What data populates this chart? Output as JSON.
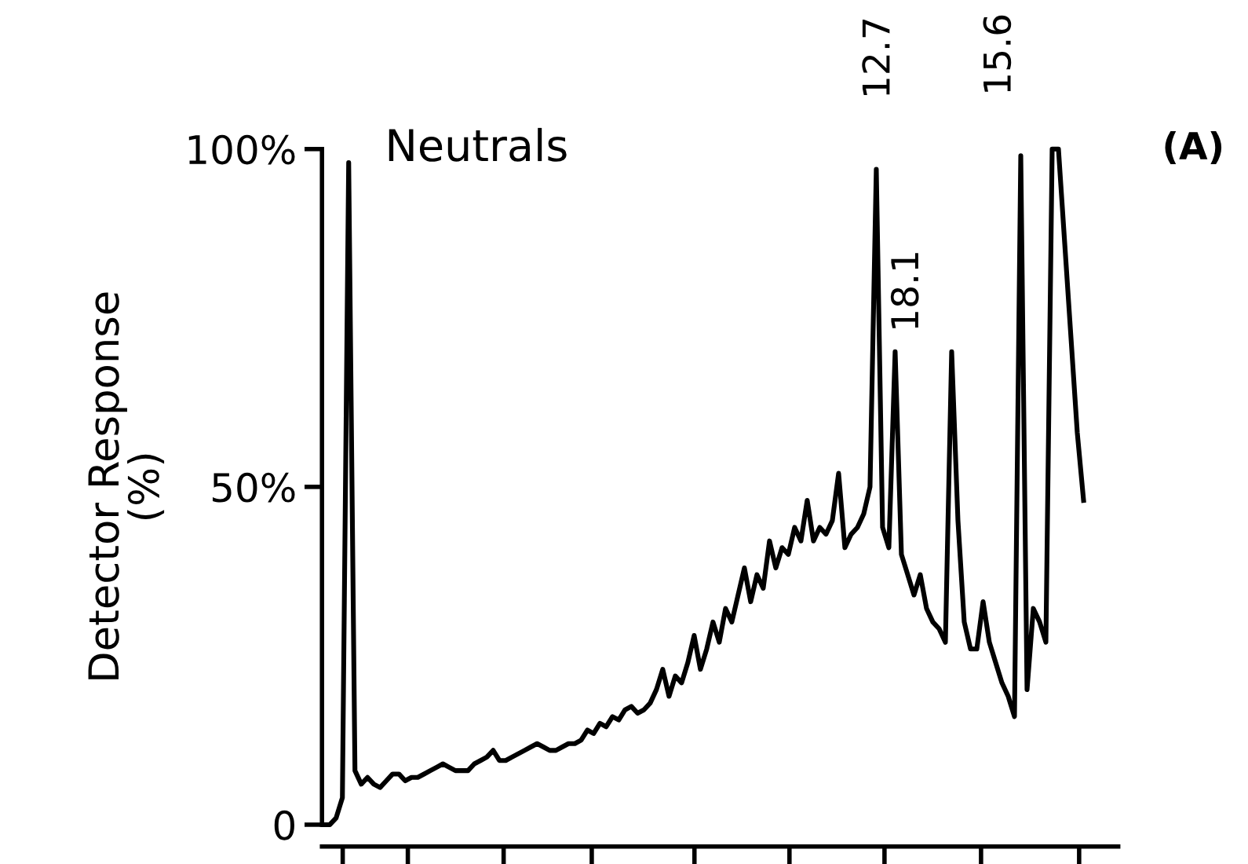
{
  "chart_data": {
    "type": "line",
    "ylabel": "Detector Response\n(%)",
    "annotations": [
      "Neutrals",
      "(A)",
      "12.7",
      "18.1",
      "15.6"
    ],
    "categories": [
      null,
      null,
      null,
      null,
      null,
      null,
      null,
      null,
      null,
      null,
      null,
      null,
      null,
      null,
      null,
      null,
      null,
      null,
      null,
      null,
      null,
      null,
      null,
      null,
      null,
      null,
      null,
      null,
      null,
      null,
      null,
      null,
      null,
      null,
      null,
      null,
      null,
      null,
      null,
      null,
      null,
      null,
      null,
      null,
      null,
      null,
      null,
      null,
      null,
      null,
      null,
      null,
      null,
      null,
      null,
      null,
      null,
      null,
      null,
      null,
      null,
      null,
      null,
      null,
      null,
      null,
      null,
      null,
      null,
      null,
      null,
      null,
      null,
      null,
      null,
      null,
      null,
      null,
      null,
      null,
      null,
      null,
      null,
      null,
      null,
      null,
      null,
      null,
      null,
      null,
      null,
      null,
      null,
      null,
      null,
      null,
      null,
      null,
      null,
      null,
      null,
      null,
      null,
      null,
      null,
      null,
      null,
      null,
      null,
      null,
      null,
      null,
      null,
      null,
      null,
      null,
      null,
      null,
      null,
      null,
      null,
      null
    ],
    "series": [
      {
        "color": "#000000",
        "values": [
          0,
          0,
          1,
          4,
          98,
          8,
          6,
          7,
          6,
          5.5,
          6.5,
          7.5,
          7.5,
          6.5,
          7,
          7,
          7.5,
          8,
          8.5,
          9,
          8.5,
          8,
          8,
          8,
          9,
          9.5,
          10,
          11,
          9.5,
          9.5,
          10,
          10.5,
          11,
          11.5,
          12,
          11.5,
          11,
          11,
          11.5,
          12,
          12,
          12.5,
          14,
          13.5,
          15,
          14.5,
          16,
          15.5,
          17,
          17.5,
          16.5,
          17,
          18,
          20,
          23,
          19,
          22,
          21,
          24,
          28,
          23,
          26,
          30,
          27,
          32,
          30,
          34,
          38,
          33,
          37,
          35,
          42,
          38,
          41,
          40,
          44,
          42,
          48,
          42,
          44,
          43,
          45,
          52,
          41,
          43,
          44,
          46,
          50,
          97,
          44,
          41,
          70,
          40,
          37,
          34,
          37,
          32,
          30,
          29,
          27,
          70,
          45,
          30,
          26,
          26,
          33,
          27,
          24,
          21,
          19,
          16,
          99,
          20,
          32,
          30,
          27,
          100,
          100,
          86,
          72,
          58,
          48
        ]
      }
    ],
    "ylim": [
      0,
      100
    ],
    "yticks": [
      {
        "value": 0,
        "label": "0"
      },
      {
        "value": 50,
        "label": "50%"
      },
      {
        "value": 100,
        "label": "100%"
      }
    ],
    "grid": false,
    "legend": false,
    "marker": "none",
    "line_style": "solid",
    "tick_labels": "y"
  }
}
